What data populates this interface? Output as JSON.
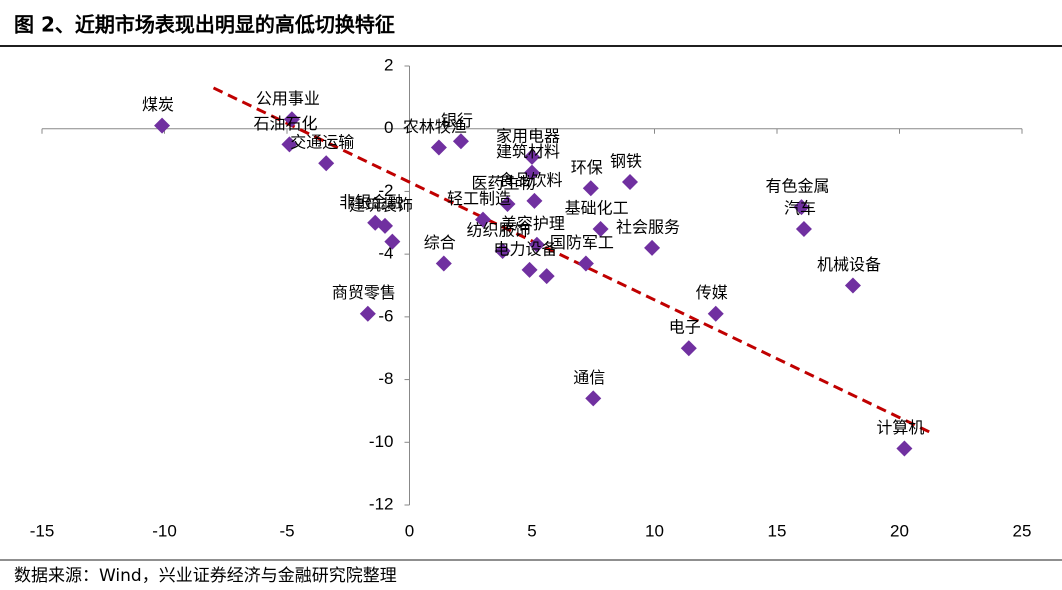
{
  "chart_data": {
    "type": "scatter",
    "title": "图 2、近期市场表现出明显的高低切换特征",
    "xlim": [
      -15,
      25
    ],
    "ylim": [
      -12,
      2
    ],
    "xticks": [
      -15,
      -10,
      -5,
      0,
      5,
      10,
      15,
      20,
      25
    ],
    "yticks": [
      -12,
      -10,
      -8,
      -6,
      -4,
      -2,
      0,
      2
    ],
    "color": "#7030a0",
    "labels": [
      "煤炭",
      "公用事业",
      "石油石化",
      "交通运输",
      "农林牧渔",
      "银行",
      "钢铁",
      "家用电器",
      "建筑材料",
      "食品饮料",
      "环保",
      "医药生物",
      "基础化工",
      "非银金融",
      "建筑装饰",
      null,
      "轻工制造",
      "综合",
      "纺织服饰",
      "美容护理",
      "国防军工",
      "电力设备",
      null,
      "社会服务",
      "有色金属",
      "汽车",
      "机械设备",
      "商贸零售",
      "传媒",
      "电子",
      "通信",
      "计算机"
    ],
    "x": [
      -10.1,
      -4.8,
      -4.9,
      -3.4,
      1.2,
      2.1,
      9.0,
      5.0,
      5.0,
      5.1,
      7.4,
      4.0,
      7.8,
      -1.4,
      -1.0,
      -0.7,
      3.0,
      1.4,
      3.8,
      5.2,
      7.2,
      4.9,
      5.6,
      9.9,
      16.0,
      16.1,
      18.1,
      -1.7,
      12.5,
      11.4,
      7.5,
      20.2
    ],
    "y": [
      0.1,
      0.3,
      -0.5,
      -1.1,
      -0.6,
      -0.4,
      -1.7,
      -0.9,
      -1.4,
      -2.3,
      -1.9,
      -2.4,
      -3.2,
      -3.0,
      -3.1,
      -3.6,
      -2.9,
      -4.3,
      -3.9,
      -3.7,
      -4.3,
      -4.5,
      -4.7,
      -3.8,
      -2.5,
      -3.2,
      -5.0,
      -5.9,
      -5.9,
      -7.0,
      -8.6,
      -10.2
    ],
    "trendline": {
      "x": [
        -8,
        21.3
      ],
      "y": [
        1.3,
        -9.7
      ],
      "color": "#c00000"
    }
  },
  "source": "数据来源：Wind，兴业证券经济与金融研究院整理"
}
